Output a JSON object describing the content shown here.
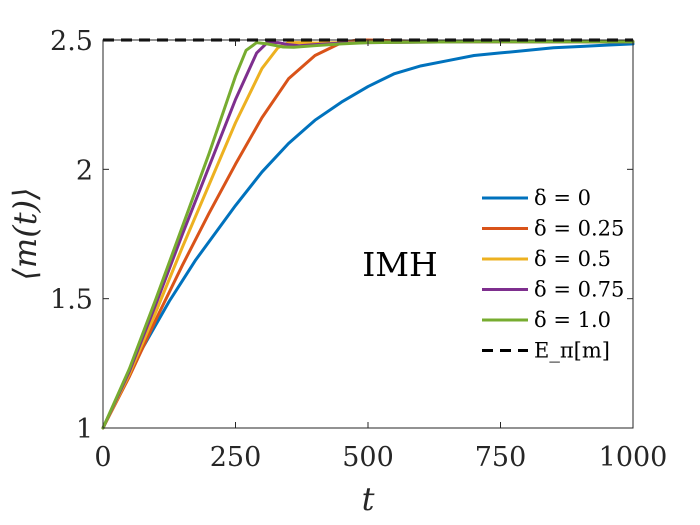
{
  "chart_data": {
    "type": "line",
    "xlabel": "t",
    "ylabel": "⟨m(t)⟩",
    "xlim": [
      0,
      1000
    ],
    "ylim": [
      1,
      2.5
    ],
    "xticks": [
      0,
      250,
      500,
      750,
      1000
    ],
    "yticks": [
      1,
      1.5,
      2,
      2.5
    ],
    "xtick_labels": [
      "0",
      "250",
      "500",
      "750",
      "1000"
    ],
    "ytick_labels": [
      "1",
      "1.5",
      "2",
      "2.5"
    ],
    "grid": false,
    "legend_position": "right",
    "annotation": "IMH",
    "series": [
      {
        "name": "δ = 0",
        "color": "#0072BD",
        "style": "solid",
        "x": [
          0,
          25,
          50,
          75,
          100,
          125,
          150,
          175,
          200,
          250,
          300,
          350,
          400,
          450,
          500,
          550,
          600,
          650,
          700,
          750,
          800,
          850,
          900,
          950,
          1000
        ],
        "y": [
          1.0,
          1.11,
          1.21,
          1.31,
          1.4,
          1.49,
          1.57,
          1.65,
          1.72,
          1.86,
          1.99,
          2.1,
          2.19,
          2.26,
          2.32,
          2.37,
          2.4,
          2.42,
          2.44,
          2.45,
          2.46,
          2.47,
          2.475,
          2.48,
          2.485
        ]
      },
      {
        "name": "δ = 0.25",
        "color": "#D95319",
        "style": "solid",
        "x": [
          0,
          50,
          100,
          150,
          200,
          250,
          300,
          350,
          400,
          450,
          480,
          500,
          550,
          600,
          650,
          700,
          800,
          900,
          1000
        ],
        "y": [
          1.0,
          1.2,
          1.42,
          1.63,
          1.83,
          2.02,
          2.2,
          2.35,
          2.44,
          2.49,
          2.5,
          2.5,
          2.497,
          2.495,
          2.494,
          2.493,
          2.493,
          2.493,
          2.493
        ]
      },
      {
        "name": "δ = 0.5",
        "color": "#EDB120",
        "style": "solid",
        "x": [
          0,
          50,
          100,
          150,
          200,
          250,
          300,
          330,
          350,
          380,
          400,
          450,
          500,
          600,
          700,
          800,
          900,
          1000
        ],
        "y": [
          1.0,
          1.21,
          1.45,
          1.7,
          1.94,
          2.18,
          2.39,
          2.47,
          2.49,
          2.49,
          2.488,
          2.49,
          2.492,
          2.493,
          2.493,
          2.493,
          2.493,
          2.493
        ]
      },
      {
        "name": "δ = 0.75",
        "color": "#7E2F8E",
        "style": "solid",
        "x": [
          0,
          50,
          100,
          150,
          200,
          250,
          290,
          310,
          330,
          350,
          370,
          400,
          450,
          500,
          600,
          700,
          800,
          900,
          1000
        ],
        "y": [
          1.0,
          1.22,
          1.48,
          1.75,
          2.01,
          2.27,
          2.45,
          2.49,
          2.49,
          2.482,
          2.478,
          2.482,
          2.488,
          2.49,
          2.492,
          2.493,
          2.493,
          2.493,
          2.493
        ]
      },
      {
        "name": "δ = 1.0",
        "color": "#77AC30",
        "style": "solid",
        "x": [
          0,
          50,
          100,
          150,
          200,
          250,
          270,
          290,
          310,
          340,
          360,
          400,
          450,
          500,
          600,
          700,
          800,
          900,
          1000
        ],
        "y": [
          1.0,
          1.23,
          1.5,
          1.78,
          2.06,
          2.36,
          2.46,
          2.49,
          2.485,
          2.473,
          2.472,
          2.478,
          2.485,
          2.49,
          2.492,
          2.493,
          2.493,
          2.493,
          2.493
        ]
      },
      {
        "name": "E_π[m]",
        "color": "#000000",
        "style": "dashed",
        "x": [
          0,
          1000
        ],
        "y": [
          2.5,
          2.5
        ]
      }
    ]
  }
}
